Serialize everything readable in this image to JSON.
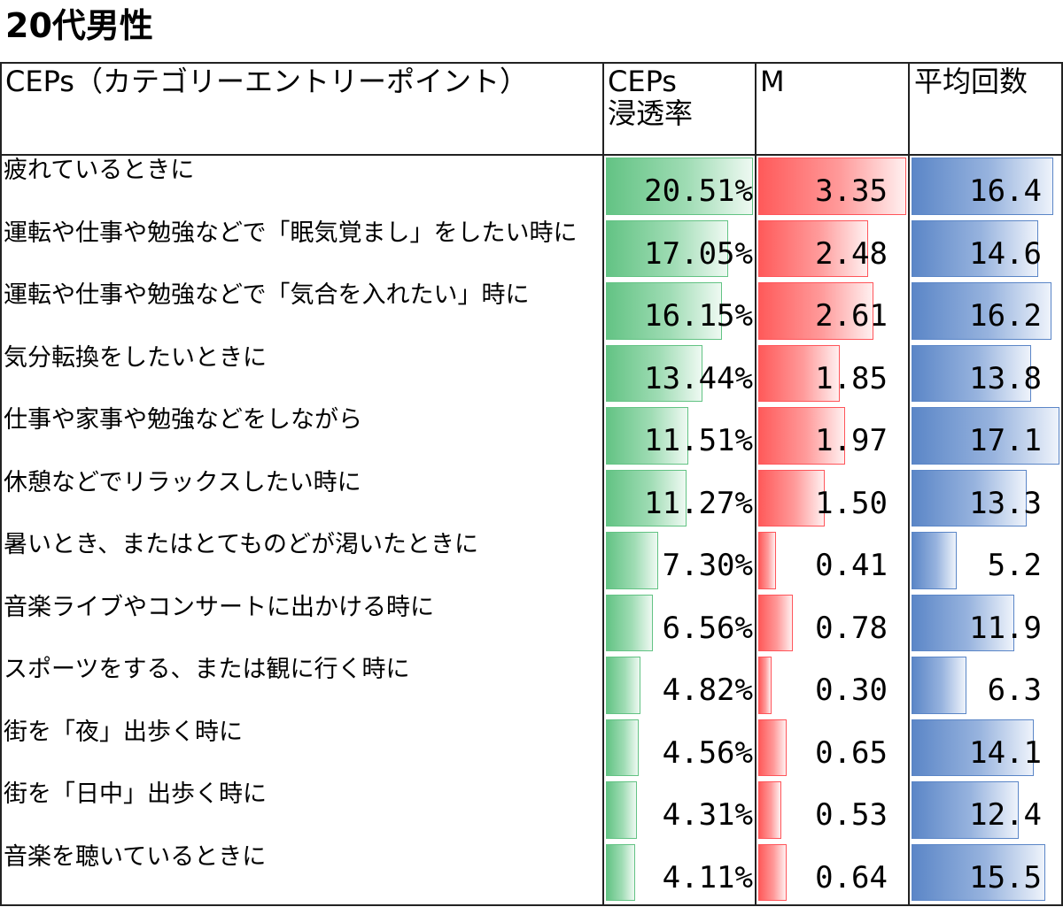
{
  "title": "20代男性",
  "headers": {
    "cep": "CEPs（カテゴリーエントリーポイント）",
    "penetration": [
      "CEPs",
      "浸透率"
    ],
    "m": "M",
    "avg": "平均回数"
  },
  "colors": {
    "green": "#63c384",
    "red": "#ff555a",
    "blue": "#5b86c7"
  },
  "chart_data": {
    "type": "table",
    "columns": [
      "CEPs（カテゴリーエントリーポイント）",
      "CEPs浸透率",
      "M",
      "平均回数"
    ],
    "rows": [
      {
        "label": "疲れているときに",
        "penetration": 20.51,
        "penetration_text": "20.51%",
        "m": 3.35,
        "m_text": "3.35",
        "avg": 16.4,
        "avg_text": "16.4"
      },
      {
        "label": "運転や仕事や勉強などで「眠気覚まし」をしたい時に",
        "penetration": 17.05,
        "penetration_text": "17.05%",
        "m": 2.48,
        "m_text": "2.48",
        "avg": 14.6,
        "avg_text": "14.6"
      },
      {
        "label": "運転や仕事や勉強などで「気合を入れたい」時に",
        "penetration": 16.15,
        "penetration_text": "16.15%",
        "m": 2.61,
        "m_text": "2.61",
        "avg": 16.2,
        "avg_text": "16.2"
      },
      {
        "label": "気分転換をしたいときに",
        "penetration": 13.44,
        "penetration_text": "13.44%",
        "m": 1.85,
        "m_text": "1.85",
        "avg": 13.8,
        "avg_text": "13.8"
      },
      {
        "label": "仕事や家事や勉強などをしながら",
        "penetration": 11.51,
        "penetration_text": "11.51%",
        "m": 1.97,
        "m_text": "1.97",
        "avg": 17.1,
        "avg_text": "17.1"
      },
      {
        "label": "休憩などでリラックスしたい時に",
        "penetration": 11.27,
        "penetration_text": "11.27%",
        "m": 1.5,
        "m_text": "1.50",
        "avg": 13.3,
        "avg_text": "13.3"
      },
      {
        "label": "暑いとき、またはとてものどが渇いたときに",
        "penetration": 7.3,
        "penetration_text": "7.30%",
        "m": 0.41,
        "m_text": "0.41",
        "avg": 5.2,
        "avg_text": "5.2"
      },
      {
        "label": "音楽ライブやコンサートに出かける時に",
        "penetration": 6.56,
        "penetration_text": "6.56%",
        "m": 0.78,
        "m_text": "0.78",
        "avg": 11.9,
        "avg_text": "11.9"
      },
      {
        "label": "スポーツをする、または観に行く時に",
        "penetration": 4.82,
        "penetration_text": "4.82%",
        "m": 0.3,
        "m_text": "0.30",
        "avg": 6.3,
        "avg_text": "6.3"
      },
      {
        "label": "街を「夜」出歩く時に",
        "penetration": 4.56,
        "penetration_text": "4.56%",
        "m": 0.65,
        "m_text": "0.65",
        "avg": 14.1,
        "avg_text": "14.1"
      },
      {
        "label": "街を「日中」出歩く時に",
        "penetration": 4.31,
        "penetration_text": "4.31%",
        "m": 0.53,
        "m_text": "0.53",
        "avg": 12.4,
        "avg_text": "12.4"
      },
      {
        "label": "音楽を聴いているときに",
        "penetration": 4.11,
        "penetration_text": "4.11%",
        "m": 0.64,
        "m_text": "0.64",
        "avg": 15.5,
        "avg_text": "15.5"
      }
    ]
  }
}
